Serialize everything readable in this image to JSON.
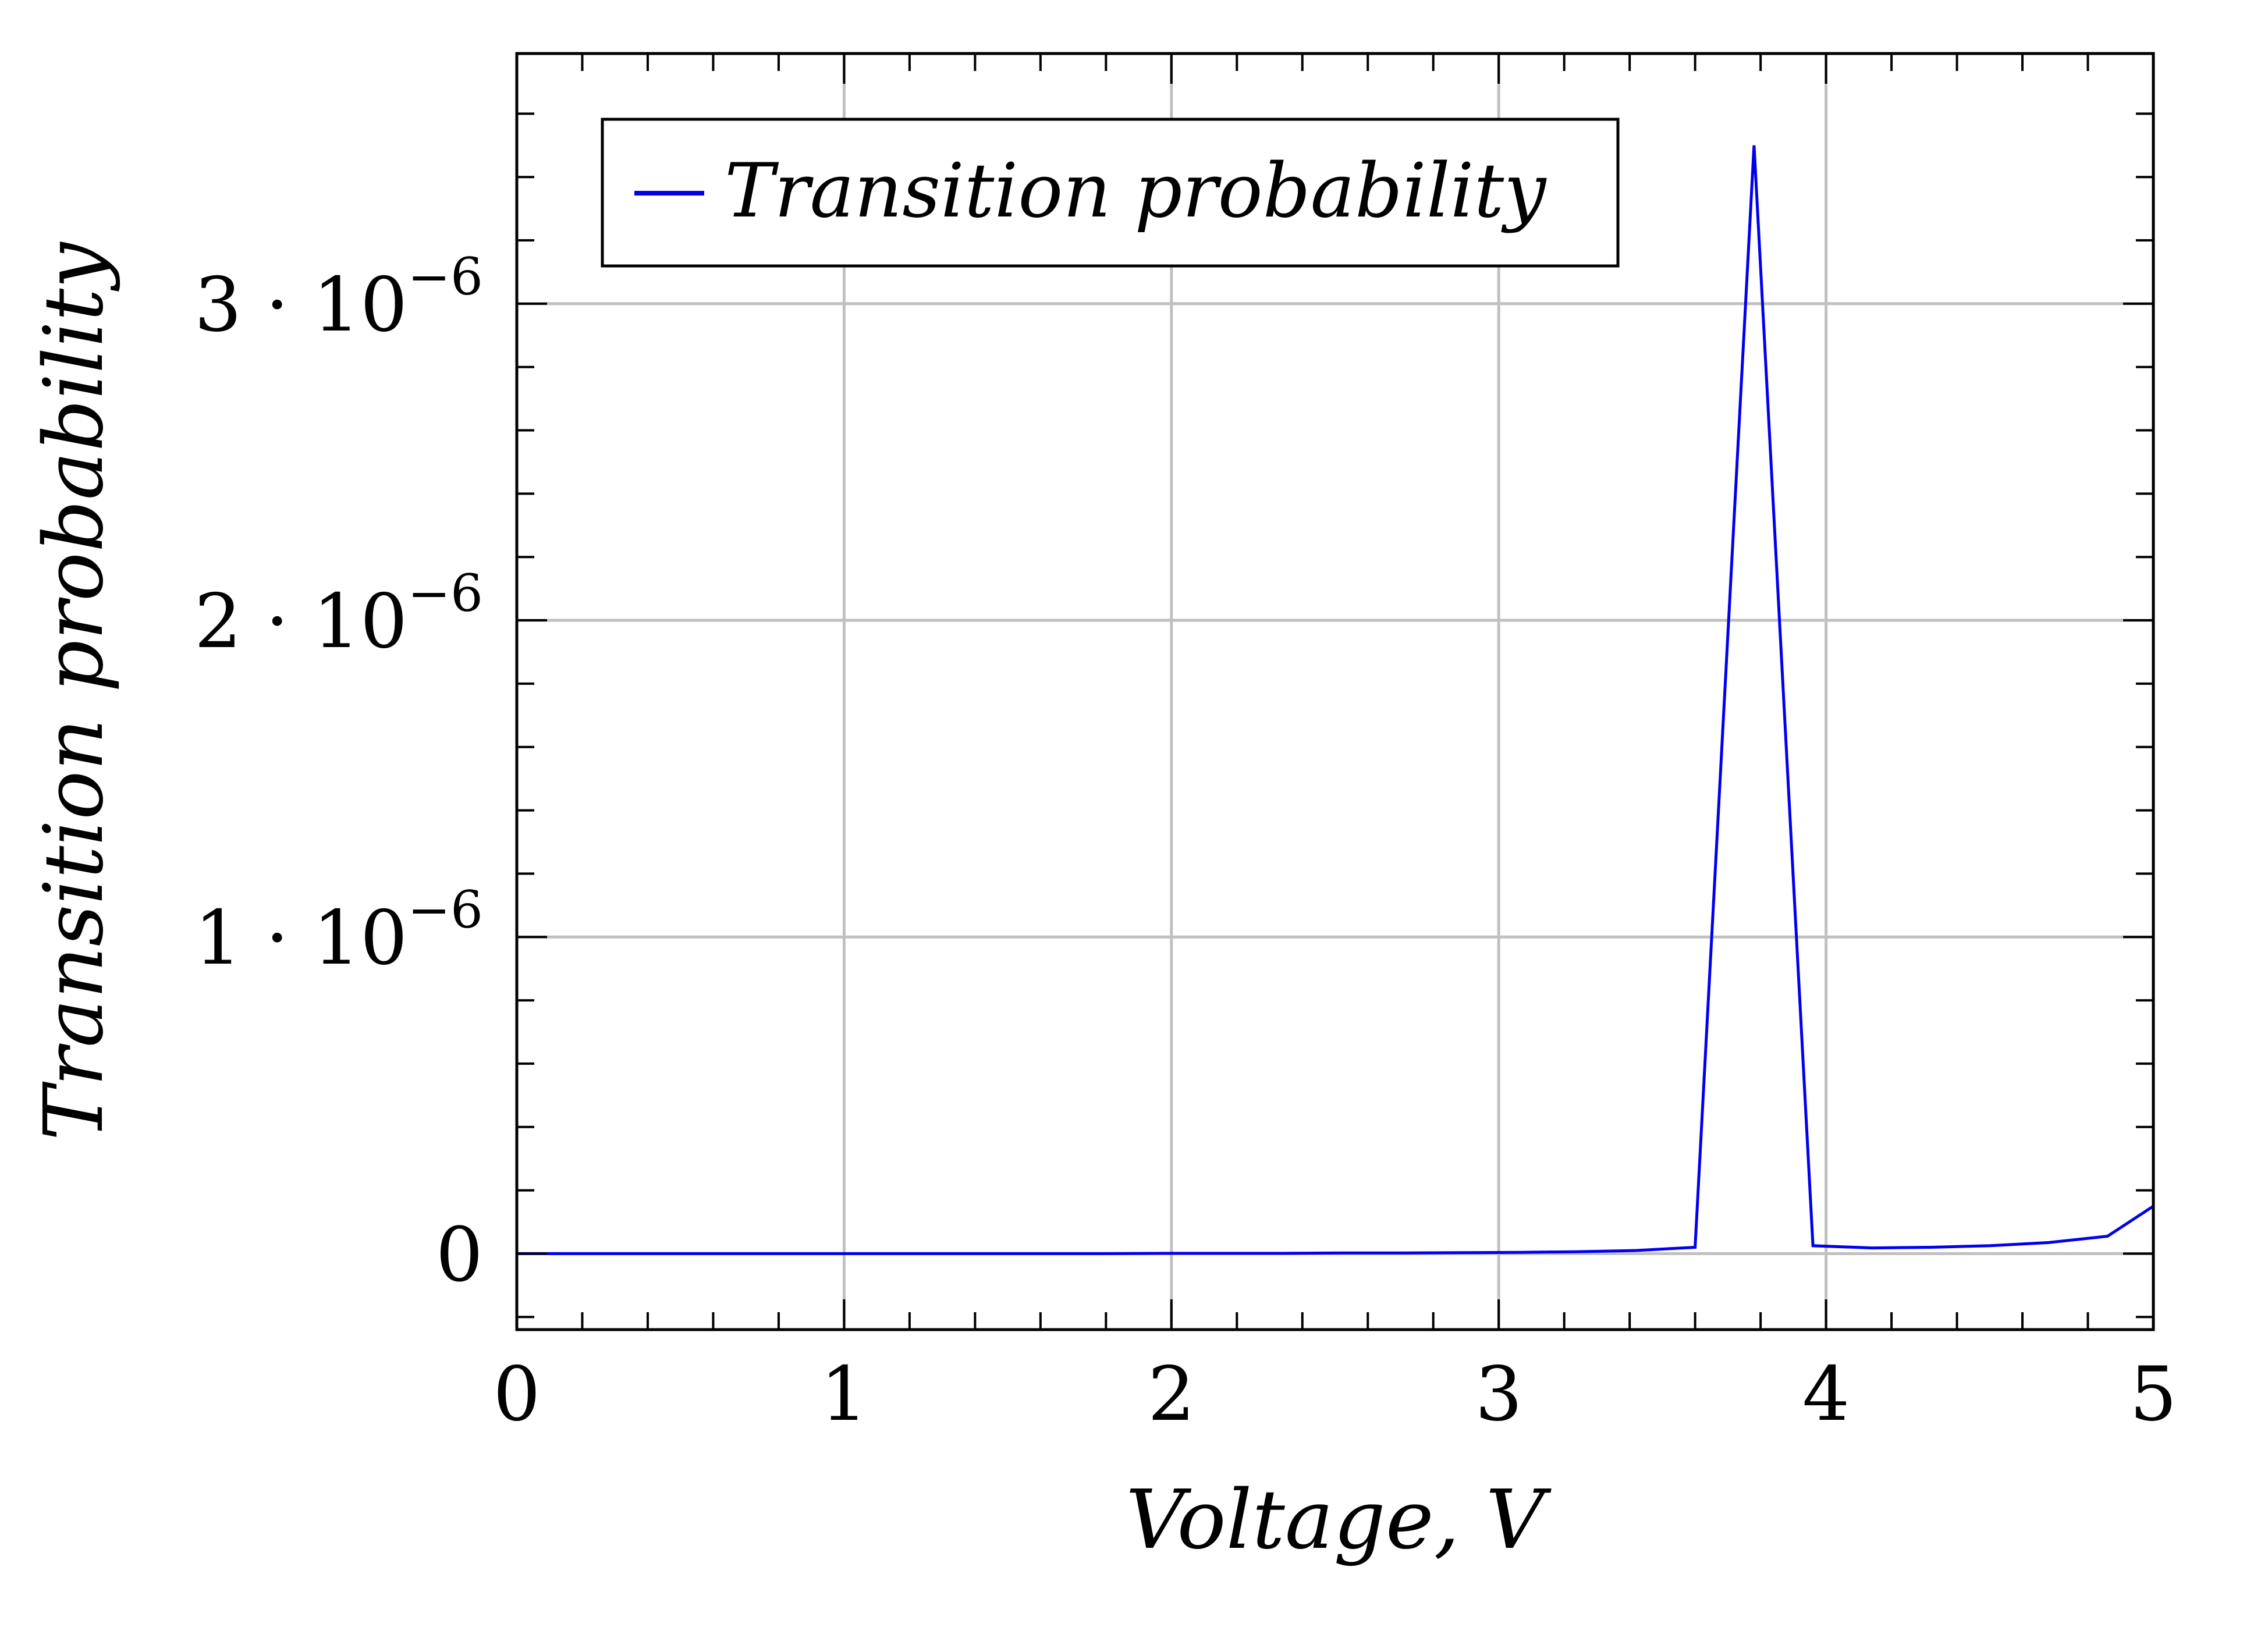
{
  "chart_data": {
    "type": "line",
    "xlabel": "Voltage, V",
    "ylabel": "Transition probability",
    "xlim": [
      0,
      5
    ],
    "ylim": [
      -2.4e-07,
      3.79e-06
    ],
    "grid": true,
    "legend_position": "top-left",
    "x_ticks": [
      0,
      1,
      2,
      3,
      4,
      5
    ],
    "x_tick_labels": [
      "0",
      "1",
      "2",
      "3",
      "4",
      "5"
    ],
    "y_ticks": [
      0,
      1e-06,
      2e-06,
      3e-06
    ],
    "y_tick_labels": [
      {
        "mantissa": "0",
        "exponent": ""
      },
      {
        "mantissa": "1 · 10",
        "exponent": "−6"
      },
      {
        "mantissa": "2 · 10",
        "exponent": "−6"
      },
      {
        "mantissa": "3 · 10",
        "exponent": "−6"
      }
    ],
    "series": [
      {
        "name": "Transition probability",
        "color": "#0000ee",
        "x": [
          0,
          0.18,
          0.36,
          0.54,
          0.72,
          0.9,
          1.08,
          1.26,
          1.44,
          1.62,
          1.8,
          1.98,
          2.16,
          2.34,
          2.52,
          2.7,
          2.88,
          3.06,
          3.24,
          3.42,
          3.6,
          3.78,
          3.96,
          4.14,
          4.32,
          4.5,
          4.68,
          4.86,
          5.0
        ],
        "y": [
          0,
          0,
          0,
          0,
          0,
          0,
          0,
          0,
          0,
          0,
          0,
          1e-09,
          1e-09,
          1e-09,
          2e-09,
          2e-09,
          3e-09,
          4e-09,
          6e-09,
          1e-08,
          2e-08,
          3.5e-06,
          2.5e-08,
          1.8e-08,
          2e-08,
          2.5e-08,
          3.5e-08,
          5.5e-08,
          1.5e-07
        ]
      }
    ]
  }
}
